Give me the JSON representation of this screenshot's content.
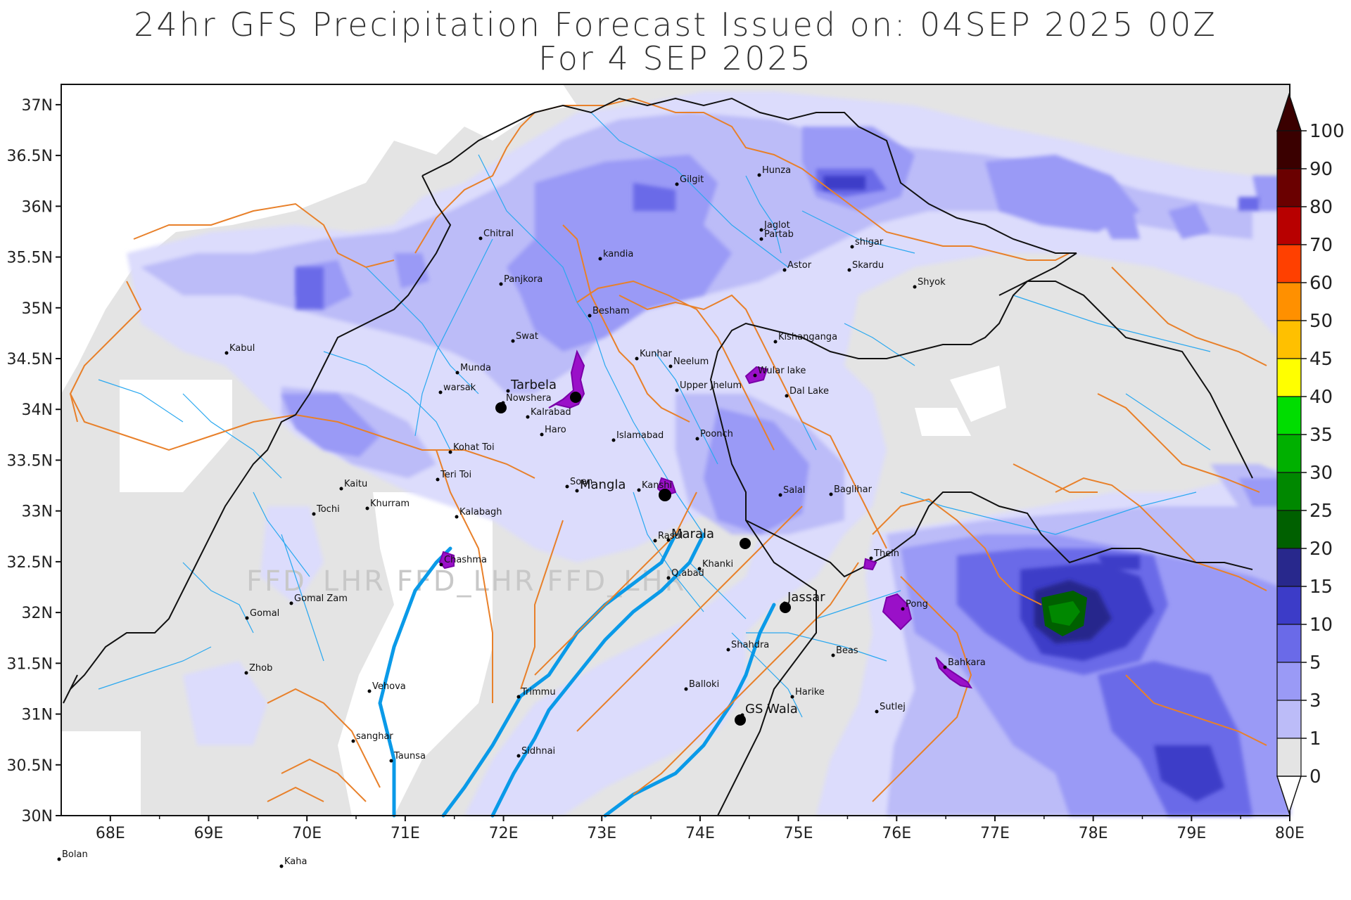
{
  "title": {
    "line1": "24hr GFS Precipitation Forecast Issued on:  04SEP 2025 00Z",
    "line2": "For 4 SEP 2025"
  },
  "watermark": "FFD_LHR  FFD_LHR  FFD_LHR",
  "axes": {
    "lat_labels": [
      "37N",
      "36.5N",
      "36N",
      "35.5N",
      "35N",
      "34.5N",
      "34N",
      "33.5N",
      "33N",
      "32.5N",
      "32N",
      "31.5N",
      "31N",
      "30.5N",
      "30N"
    ],
    "lon_labels": [
      "68E",
      "69E",
      "70E",
      "71E",
      "72E",
      "73E",
      "74E",
      "75E",
      "76E",
      "77E",
      "78E",
      "79E",
      "80E"
    ],
    "lat_range": [
      30,
      37.2
    ],
    "lon_range": [
      67.5,
      80
    ]
  },
  "colorbar": {
    "levels": [
      "100",
      "90",
      "80",
      "70",
      "60",
      "50",
      "45",
      "40",
      "35",
      "30",
      "25",
      "20",
      "15",
      "10",
      "5",
      "3",
      "1",
      "0"
    ],
    "colors": {
      "100": "#3a0000",
      "90": "#6a0000",
      "80": "#b80000",
      "70": "#ff4000",
      "60": "#ff9000",
      "50": "#ffc000",
      "45": "#ffff00",
      "40": "#00dd00",
      "35": "#00b000",
      "30": "#008800",
      "25": "#006000",
      "20": "#28288c",
      "15": "#3c3cc8",
      "10": "#6a6ae8",
      "5": "#9a9af6",
      "3": "#bcbcf8",
      "1": "#dcdcfc",
      "0": "#e4e4e4"
    }
  },
  "places": {
    "gilgit": "Gilgit",
    "hunza": "Hunza",
    "chitral": "Chitral",
    "jaglot": "Jaglot",
    "partab": "Partab",
    "shigar": "shigar",
    "kandia": "kandia",
    "skardu": "Skardu",
    "astor": "Astor",
    "panjkora": "Panjkora",
    "shyok": "Shyok",
    "besham": "Besham",
    "swat": "Swat",
    "kishanganga": "Kishanganga",
    "kabul": "Kabul",
    "kunhar": "Kunhar",
    "neelum": "Neelum",
    "munda": "Munda",
    "wular": "Wular lake",
    "warsak": "warsak",
    "upper_jhelum": "Upper Jhelum",
    "tarbela": "Tarbela",
    "dal": "Dal Lake",
    "nowshera": "Nowshera",
    "kalrabad": "Kalrabad",
    "haro": "Haro",
    "islamabad": "Islamabad",
    "poonch": "Poonch",
    "kohat": "Kohat Toi",
    "teri": "Teri Toi",
    "kaitu": "Kaitu",
    "soan": "Soan",
    "kanshi": "Kanshi",
    "mangla": "Mangla",
    "salal": "Salal",
    "baglihar": "Baglihar",
    "tochi": "Tochi",
    "khurram": "Khurram",
    "kalabagh": "Kalabagh",
    "rasul": "Rasul",
    "marala": "Marala",
    "thein": "Thein",
    "chashma": "Chashma",
    "khanki": "Khanki",
    "qabad": "Q.abad",
    "gomal_zam": "Gomal Zam",
    "pong": "Pong",
    "gomal": "Gomal",
    "jassar": "Jassar",
    "shahdra": "Shahdra",
    "beas": "Beas",
    "zhob": "Zhob",
    "bahkara": "Bahkara",
    "vehova": "Vehova",
    "balloki": "Balloki",
    "trimmu": "Trimmu",
    "harike": "Harike",
    "sutlej": "Sutlej",
    "gs_wala": "GS Wala",
    "sanghar": "sanghar",
    "taunsa": "Taunsa",
    "sidhnai": "Sidhnai",
    "bolan": "Bolan",
    "kaha": "Kaha"
  }
}
